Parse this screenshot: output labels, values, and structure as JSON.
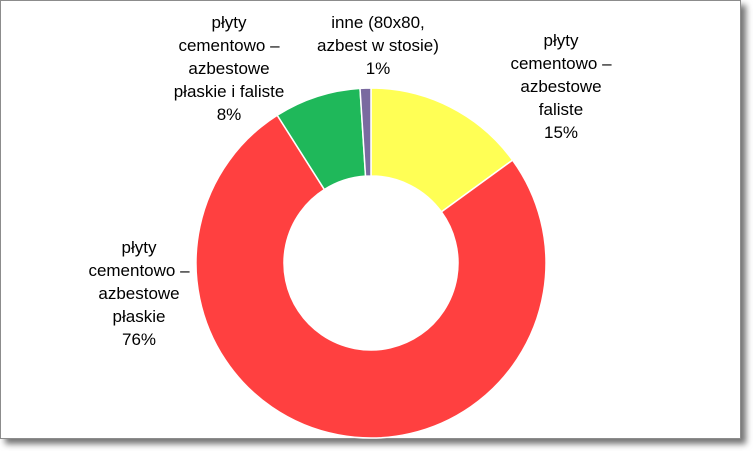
{
  "chart_data": {
    "type": "pie",
    "variant": "doughnut",
    "title": "",
    "legend": "none",
    "slices": [
      {
        "label_lines": [
          "płyty",
          "cementowo –",
          "azbestowe",
          "faliste"
        ],
        "percent_label": "15%",
        "value": 15,
        "color": "#ffff55"
      },
      {
        "label_lines": [
          "płyty",
          "cementowo –",
          "azbestowe",
          "płaskie"
        ],
        "percent_label": "76%",
        "value": 76,
        "color": "#ff4040"
      },
      {
        "label_lines": [
          "płyty",
          "cementowo –",
          "azbestowe",
          "płaskie i faliste"
        ],
        "percent_label": "8%",
        "value": 8,
        "color": "#1fb85a"
      },
      {
        "label_lines": [
          "inne (80x80,",
          "azbest w stosie)"
        ],
        "percent_label": "1%",
        "value": 1,
        "color": "#7a6aa0"
      }
    ]
  }
}
